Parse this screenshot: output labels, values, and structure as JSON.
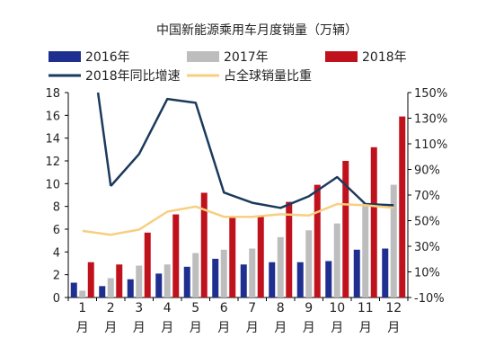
{
  "chart_data": {
    "type": "bar",
    "title": "中国新能源乘用车月度销量（万辆）",
    "categories": [
      "1月",
      "2月",
      "3月",
      "4月",
      "5月",
      "6月",
      "7月",
      "8月",
      "9月",
      "10月",
      "11月",
      "12月"
    ],
    "series": [
      {
        "name": "2016年",
        "kind": "bar",
        "axis": "left",
        "color": "#1f2f8f",
        "values": [
          1.3,
          1.0,
          1.6,
          2.1,
          2.7,
          3.4,
          2.9,
          3.1,
          3.1,
          3.2,
          4.2,
          4.3
        ]
      },
      {
        "name": "2017年",
        "kind": "bar",
        "axis": "left",
        "color": "#bdbdbd",
        "values": [
          0.6,
          1.7,
          2.8,
          2.9,
          3.9,
          4.2,
          4.3,
          5.3,
          5.9,
          6.5,
          8.3,
          9.9
        ]
      },
      {
        "name": "2018年",
        "kind": "bar",
        "axis": "left",
        "color": "#c0121c",
        "values": [
          3.1,
          2.9,
          5.7,
          7.3,
          9.2,
          7.1,
          7.1,
          8.4,
          9.9,
          12.0,
          13.2,
          15.9
        ]
      },
      {
        "name": "2018年同比增速",
        "kind": "line",
        "axis": "right",
        "color": "#1b3a5c",
        "values": [
          null,
          77,
          102,
          145,
          142,
          72,
          64,
          60,
          69,
          84,
          63,
          62
        ]
      },
      {
        "name": "占全球销量比重",
        "kind": "line",
        "axis": "right",
        "color": "#f7cf7f",
        "values": [
          42,
          39,
          43,
          57,
          61,
          53,
          53,
          55,
          54,
          63,
          62,
          60
        ]
      }
    ],
    "y_left": {
      "min": 0,
      "max": 18,
      "step": 2,
      "ticks": [
        "0",
        "2",
        "4",
        "6",
        "8",
        "10",
        "12",
        "14",
        "16",
        "18"
      ]
    },
    "y_right": {
      "min": -10,
      "max": 150,
      "step": 20,
      "ticks": [
        "-10%",
        "10%",
        "30%",
        "50%",
        "70%",
        "90%",
        "110%",
        "130%",
        "150%"
      ]
    },
    "legend_position": "top",
    "grid": false
  }
}
